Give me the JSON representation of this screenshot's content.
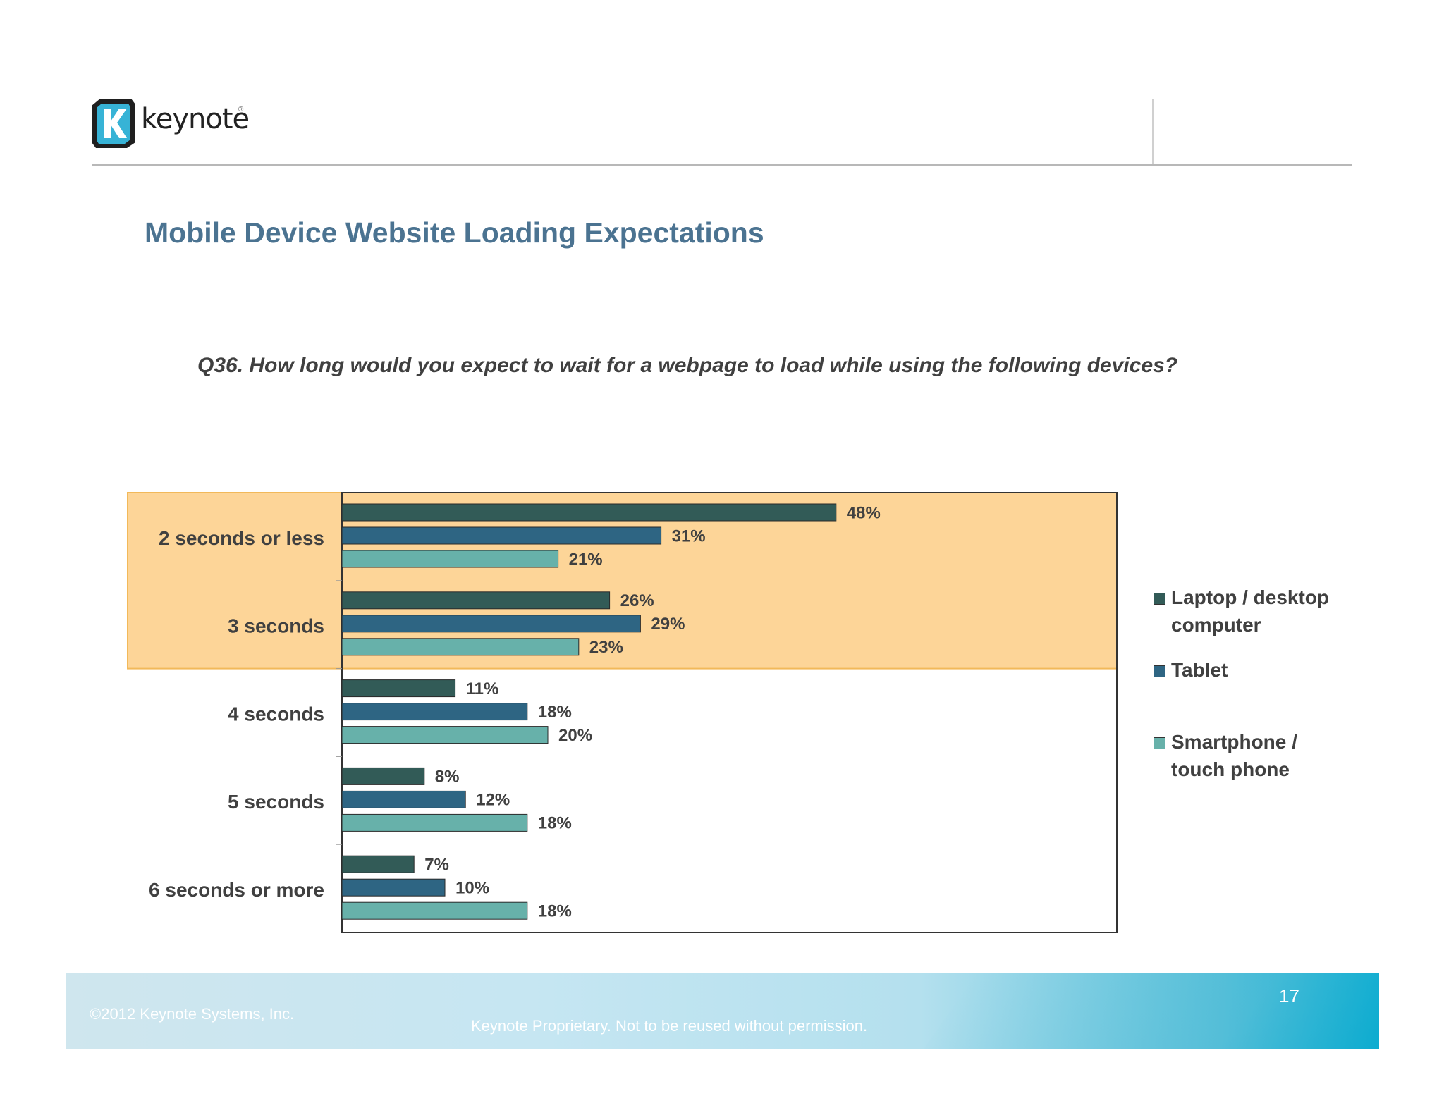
{
  "header": {
    "logo_text": "keynote",
    "logo_reg": "®"
  },
  "slide": {
    "title": "Mobile Device Website Loading Expectations",
    "question": "Q36. How long would you expect to wait for a webpage to load while using the following devices?"
  },
  "colors": {
    "laptop": "#325b57",
    "tablet": "#2e6583",
    "smartphone": "#67b1aa",
    "highlight": "#fdd598",
    "highlight_border": "#f2b95a",
    "title": "#4b7391"
  },
  "chart_data": {
    "type": "bar",
    "orientation": "horizontal",
    "categories": [
      "2 seconds or less",
      "3 seconds",
      "4 seconds",
      "5 seconds",
      "6 seconds or more"
    ],
    "series": [
      {
        "name": "Laptop / desktop computer",
        "values": [
          48,
          26,
          11,
          8,
          7
        ]
      },
      {
        "name": "Tablet",
        "values": [
          31,
          29,
          18,
          12,
          10
        ]
      },
      {
        "name": "Smartphone / touch phone",
        "values": [
          21,
          23,
          20,
          18,
          18
        ]
      }
    ],
    "value_suffix": "%",
    "xlim": [
      0,
      60
    ],
    "highlighted_categories": [
      "2 seconds or less",
      "3 seconds"
    ],
    "legend_position": "right",
    "grid": false
  },
  "legend": {
    "items": [
      {
        "label": "Laptop / desktop computer"
      },
      {
        "label": "Tablet"
      },
      {
        "label": "Smartphone / touch phone"
      }
    ]
  },
  "footer": {
    "copyright": "©2012 Keynote Systems, Inc.",
    "proprietary": "Keynote Proprietary. Not to be reused without permission.",
    "page_number": "17"
  }
}
